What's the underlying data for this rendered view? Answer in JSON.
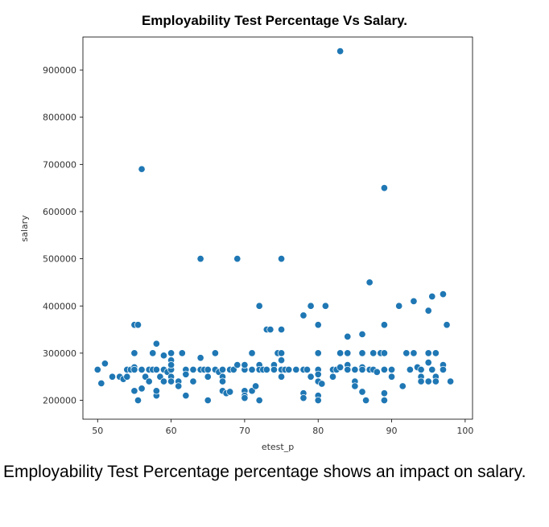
{
  "chart_data": {
    "type": "scatter",
    "title": "Employability Test Percentage Vs Salary.",
    "xlabel": "etest_p",
    "ylabel": "salary",
    "xlim": [
      48,
      101
    ],
    "ylim": [
      160000,
      970000
    ],
    "xticks": [
      50,
      60,
      70,
      80,
      90,
      100
    ],
    "yticks": [
      200000,
      300000,
      400000,
      500000,
      600000,
      700000,
      800000,
      900000
    ],
    "grid": false,
    "marker_color": "#1f77b4",
    "points": [
      [
        50,
        265000
      ],
      [
        50.5,
        236000
      ],
      [
        51,
        278000
      ],
      [
        52,
        250000
      ],
      [
        53,
        250000
      ],
      [
        53.5,
        245000
      ],
      [
        54,
        265000
      ],
      [
        54,
        250000
      ],
      [
        54.5,
        265000
      ],
      [
        55,
        270000
      ],
      [
        55,
        265000
      ],
      [
        55,
        300000
      ],
      [
        55,
        220000
      ],
      [
        55,
        360000
      ],
      [
        55.5,
        360000
      ],
      [
        55.5,
        200000
      ],
      [
        56,
        690000
      ],
      [
        56,
        265000
      ],
      [
        56,
        225000
      ],
      [
        56.5,
        250000
      ],
      [
        57,
        265000
      ],
      [
        57,
        240000
      ],
      [
        57.5,
        265000
      ],
      [
        57.5,
        300000
      ],
      [
        58,
        320000
      ],
      [
        58,
        265000
      ],
      [
        58,
        210000
      ],
      [
        58,
        220000
      ],
      [
        58.5,
        250000
      ],
      [
        59,
        265000
      ],
      [
        59,
        295000
      ],
      [
        59,
        240000
      ],
      [
        59.5,
        260000
      ],
      [
        60,
        300000
      ],
      [
        60,
        265000
      ],
      [
        60,
        285000
      ],
      [
        60,
        275000
      ],
      [
        60,
        250000
      ],
      [
        60,
        240000
      ],
      [
        61,
        240000
      ],
      [
        61,
        230000
      ],
      [
        61.5,
        300000
      ],
      [
        62,
        265000
      ],
      [
        62,
        255000
      ],
      [
        62,
        210000
      ],
      [
        63,
        265000
      ],
      [
        63,
        240000
      ],
      [
        64,
        500000
      ],
      [
        64,
        265000
      ],
      [
        64,
        290000
      ],
      [
        64.5,
        265000
      ],
      [
        65,
        200000
      ],
      [
        65,
        250000
      ],
      [
        65,
        265000
      ],
      [
        66,
        265000
      ],
      [
        66,
        300000
      ],
      [
        66.5,
        260000
      ],
      [
        67,
        265000
      ],
      [
        67,
        250000
      ],
      [
        67,
        240000
      ],
      [
        67,
        220000
      ],
      [
        67.5,
        215000
      ],
      [
        68,
        265000
      ],
      [
        68,
        218000
      ],
      [
        68.5,
        265000
      ],
      [
        69,
        500000
      ],
      [
        69,
        275000
      ],
      [
        70,
        265000
      ],
      [
        70,
        220000
      ],
      [
        70,
        210000
      ],
      [
        70,
        205000
      ],
      [
        70,
        275000
      ],
      [
        71,
        300000
      ],
      [
        71,
        265000
      ],
      [
        71,
        220000
      ],
      [
        71.5,
        230000
      ],
      [
        72,
        400000
      ],
      [
        72,
        275000
      ],
      [
        72,
        265000
      ],
      [
        72,
        200000
      ],
      [
        72.5,
        265000
      ],
      [
        73,
        350000
      ],
      [
        73,
        265000
      ],
      [
        73.5,
        350000
      ],
      [
        74,
        275000
      ],
      [
        74,
        265000
      ],
      [
        74.5,
        300000
      ],
      [
        75,
        500000
      ],
      [
        75,
        350000
      ],
      [
        75,
        300000
      ],
      [
        75,
        285000
      ],
      [
        75,
        265000
      ],
      [
        75,
        250000
      ],
      [
        75.5,
        265000
      ],
      [
        76,
        265000
      ],
      [
        77,
        265000
      ],
      [
        78,
        380000
      ],
      [
        78,
        265000
      ],
      [
        78,
        215000
      ],
      [
        78,
        205000
      ],
      [
        78.5,
        265000
      ],
      [
        79,
        400000
      ],
      [
        79,
        250000
      ],
      [
        80,
        360000
      ],
      [
        80,
        300000
      ],
      [
        80,
        265000
      ],
      [
        80,
        255000
      ],
      [
        80,
        240000
      ],
      [
        80,
        210000
      ],
      [
        80,
        200000
      ],
      [
        80.5,
        235000
      ],
      [
        81,
        400000
      ],
      [
        82,
        265000
      ],
      [
        82,
        250000
      ],
      [
        82.5,
        265000
      ],
      [
        83,
        940000
      ],
      [
        83,
        300000
      ],
      [
        83,
        270000
      ],
      [
        84,
        300000
      ],
      [
        84,
        275000
      ],
      [
        84,
        265000
      ],
      [
        84,
        335000
      ],
      [
        85,
        265000
      ],
      [
        85,
        240000
      ],
      [
        85,
        230000
      ],
      [
        86,
        340000
      ],
      [
        86,
        300000
      ],
      [
        86,
        270000
      ],
      [
        86,
        265000
      ],
      [
        86,
        218000
      ],
      [
        86.5,
        200000
      ],
      [
        87,
        450000
      ],
      [
        87,
        265000
      ],
      [
        87.5,
        300000
      ],
      [
        87.5,
        265000
      ],
      [
        88,
        260000
      ],
      [
        88.5,
        300000
      ],
      [
        89,
        650000
      ],
      [
        89,
        360000
      ],
      [
        89,
        300000
      ],
      [
        89,
        265000
      ],
      [
        89,
        215000
      ],
      [
        89,
        200000
      ],
      [
        90,
        265000
      ],
      [
        90,
        250000
      ],
      [
        91,
        400000
      ],
      [
        91.5,
        230000
      ],
      [
        92,
        300000
      ],
      [
        92.5,
        265000
      ],
      [
        93,
        410000
      ],
      [
        93,
        300000
      ],
      [
        93.5,
        270000
      ],
      [
        94,
        265000
      ],
      [
        94,
        250000
      ],
      [
        94,
        240000
      ],
      [
        95,
        390000
      ],
      [
        95,
        300000
      ],
      [
        95,
        280000
      ],
      [
        95,
        240000
      ],
      [
        95.5,
        420000
      ],
      [
        95.5,
        265000
      ],
      [
        96,
        300000
      ],
      [
        96,
        250000
      ],
      [
        96,
        240000
      ],
      [
        97,
        425000
      ],
      [
        97,
        275000
      ],
      [
        97,
        265000
      ],
      [
        97.5,
        360000
      ],
      [
        98,
        240000
      ]
    ]
  },
  "caption": "Employability Test Percentage percentage shows an impact on salary."
}
